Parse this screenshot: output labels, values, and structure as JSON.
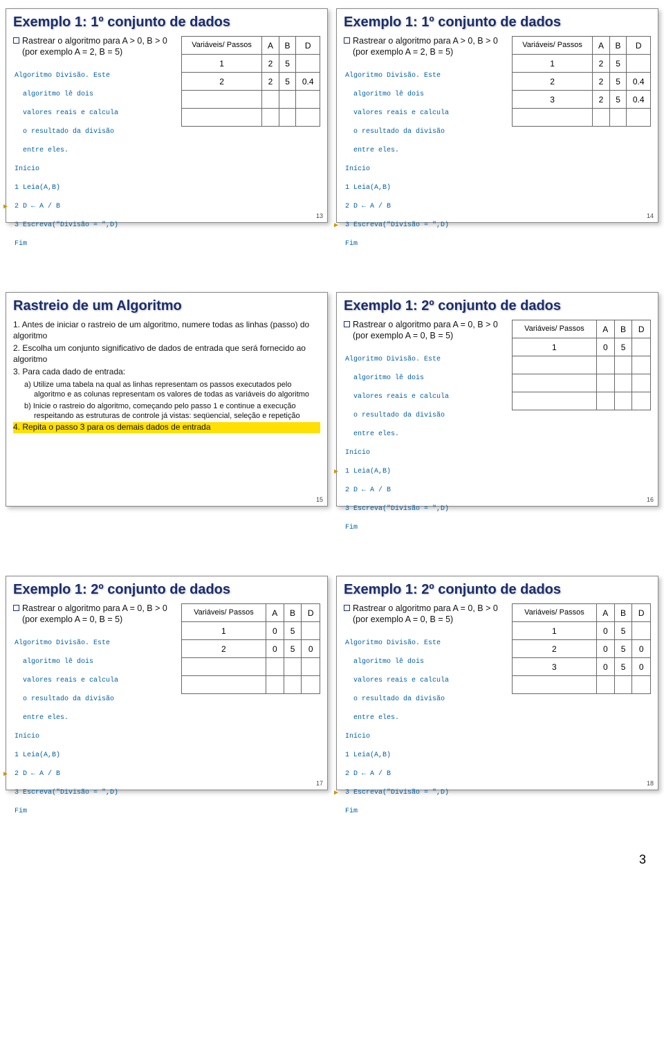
{
  "colors": {
    "title": "#1a2e6e",
    "code": "#005fa3",
    "arrow": "#c99700",
    "highlight": "#ffe000",
    "border": "#888",
    "table_border": "#666"
  },
  "common": {
    "table_first_header": "Variáveis/ Passos",
    "col_a": "A",
    "col_b": "B",
    "col_d": "D",
    "algo_desc1": "Algoritmo Divisão. Este",
    "algo_desc2": "  algoritmo lê dois",
    "algo_desc3": "  valores reais e calcula",
    "algo_desc4": "  o resultado da divisão",
    "algo_desc5": "  entre eles.",
    "inicio": "Início",
    "l1": "1 Leia(A,B)",
    "l2": "2 D ← A / B",
    "l3": "3 Escreva(\"Divisão = \",D)",
    "fim": "Fim"
  },
  "slides": {
    "s13": {
      "title": "Exemplo 1: 1º conjunto de dados",
      "rastrear": "Rastrear o algoritmo para A > 0, B > 0 (por exemplo A = 2, B = 5)",
      "arrow_line": 2,
      "rows": [
        {
          "p": "1",
          "a": "2",
          "b": "5",
          "d": ""
        },
        {
          "p": "2",
          "a": "2",
          "b": "5",
          "d": "0.4"
        },
        {
          "p": "",
          "a": "",
          "b": "",
          "d": ""
        },
        {
          "p": "",
          "a": "",
          "b": "",
          "d": ""
        }
      ],
      "num": "13"
    },
    "s14": {
      "title": "Exemplo 1: 1º conjunto de dados",
      "rastrear": "Rastrear o algoritmo para A > 0, B > 0 (por exemplo A = 2, B = 5)",
      "arrow_line": 3,
      "rows": [
        {
          "p": "1",
          "a": "2",
          "b": "5",
          "d": ""
        },
        {
          "p": "2",
          "a": "2",
          "b": "5",
          "d": "0.4"
        },
        {
          "p": "3",
          "a": "2",
          "b": "5",
          "d": "0.4"
        },
        {
          "p": "",
          "a": "",
          "b": "",
          "d": ""
        }
      ],
      "num": "14"
    },
    "s15": {
      "title": "Rastreio de um Algoritmo",
      "step1": "1. Antes de iniciar o rastreio de um algoritmo, numere todas as linhas (passo) do algoritmo",
      "step2": "2. Escolha um conjunto significativo de dados de entrada que será fornecido ao algoritmo",
      "step3": "3. Para cada dado de entrada:",
      "step3a": "a) Utilize uma tabela na qual as linhas representam os passos executados pelo algoritmo e as colunas representam os valores de todas as variáveis do algoritmo",
      "step3b": "b) Inicie o rastreio do algoritmo, começando pelo passo 1 e continue a execução respeitando as estruturas de controle já vistas: seqüencial, seleção e repetição",
      "step4": "4. Repita o passo 3 para os demais dados de entrada",
      "num": "15"
    },
    "s16": {
      "title": "Exemplo 1: 2º conjunto de dados",
      "rastrear": "Rastrear o algoritmo para A = 0, B > 0 (por exemplo A = 0, B = 5)",
      "arrow_line": 1,
      "rows": [
        {
          "p": "1",
          "a": "0",
          "b": "5",
          "d": ""
        },
        {
          "p": "",
          "a": "",
          "b": "",
          "d": ""
        },
        {
          "p": "",
          "a": "",
          "b": "",
          "d": ""
        },
        {
          "p": "",
          "a": "",
          "b": "",
          "d": ""
        }
      ],
      "num": "16"
    },
    "s17": {
      "title": "Exemplo 1: 2º conjunto de dados",
      "rastrear": "Rastrear o algoritmo para A = 0, B > 0 (por exemplo A = 0, B = 5)",
      "arrow_line": 2,
      "rows": [
        {
          "p": "1",
          "a": "0",
          "b": "5",
          "d": ""
        },
        {
          "p": "2",
          "a": "0",
          "b": "5",
          "d": "0"
        },
        {
          "p": "",
          "a": "",
          "b": "",
          "d": ""
        },
        {
          "p": "",
          "a": "",
          "b": "",
          "d": ""
        }
      ],
      "num": "17"
    },
    "s18": {
      "title": "Exemplo 1: 2º conjunto de dados",
      "rastrear": "Rastrear o algoritmo para A = 0, B > 0 (por exemplo A = 0, B = 5)",
      "arrow_line": 3,
      "rows": [
        {
          "p": "1",
          "a": "0",
          "b": "5",
          "d": ""
        },
        {
          "p": "2",
          "a": "0",
          "b": "5",
          "d": "0"
        },
        {
          "p": "3",
          "a": "0",
          "b": "5",
          "d": "0"
        },
        {
          "p": "",
          "a": "",
          "b": "",
          "d": ""
        }
      ],
      "num": "18"
    }
  },
  "page_number": "3"
}
